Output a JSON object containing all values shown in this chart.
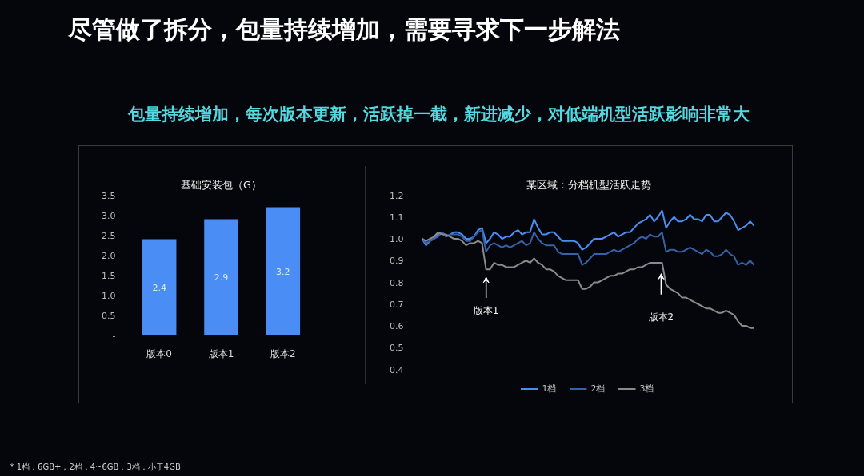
{
  "chart_data": [
    {
      "type": "other",
      "title": "尽管做了拆分，包量持续增加，需要寻求下一步解法",
      "subtitle": "包量持续增加，每次版本更新，活跃掉一截，新进减少，对低端机型活跃影响非常大",
      "annotations": [
        "* 1档：6GB+；2档：4~6GB；3档：小于4GB"
      ]
    },
    {
      "type": "bar",
      "title": "基础安装包（G）",
      "categories": [
        "版本0",
        "版本1",
        "版本2"
      ],
      "values": [
        2.4,
        2.9,
        3.2
      ],
      "color": "#4a8ef5",
      "ylim": [
        0,
        3.5
      ],
      "yticks": [
        {
          "value": 0,
          "label": "-"
        },
        0.5,
        {
          "value": 1,
          "label": "1.0"
        },
        1.5,
        {
          "value": 2,
          "label": "2.0"
        },
        2.5,
        {
          "value": 3,
          "label": "3.0"
        },
        3.5
      ],
      "data_labels": true
    },
    {
      "type": "line",
      "title": "某区域：分档机型活跃走势",
      "categories": [
        null,
        null,
        null,
        null,
        null,
        null,
        null,
        null,
        null,
        null,
        null,
        null,
        null,
        null,
        null,
        null,
        null,
        null,
        null,
        null,
        null,
        null,
        null,
        null,
        null,
        null,
        null,
        null,
        null,
        null,
        null,
        null,
        null,
        null,
        null,
        null,
        null,
        null,
        null,
        null,
        null,
        null,
        null,
        null,
        null,
        null,
        null,
        null,
        null,
        null,
        null,
        null,
        null,
        null,
        null,
        null,
        null,
        null,
        null,
        null,
        null,
        null,
        null,
        null,
        null,
        null,
        null,
        null,
        null,
        null,
        null,
        null,
        null,
        null,
        null,
        null,
        null,
        null,
        null,
        null,
        null,
        null,
        null,
        null
      ],
      "series": [
        {
          "name": "1档",
          "color": "#4a8ff0",
          "values": [
            1.0,
            0.97,
            0.99,
            1.0,
            1.02,
            1.03,
            1.01,
            1.02,
            1.03,
            1.03,
            1.02,
            1.0,
            1.0,
            1.01,
            1.04,
            1.05,
            0.98,
            1.0,
            1.03,
            1.02,
            1.0,
            1.01,
            1.01,
            1.03,
            1.04,
            1.02,
            1.03,
            1.03,
            1.09,
            1.05,
            1.02,
            1.02,
            1.03,
            1.03,
            1.01,
            0.99,
            0.99,
            0.99,
            0.99,
            0.98,
            0.95,
            0.96,
            0.98,
            1.0,
            1.0,
            1.0,
            1.01,
            1.02,
            1.03,
            1.01,
            1.02,
            1.03,
            1.03,
            1.05,
            1.07,
            1.08,
            1.09,
            1.11,
            1.08,
            1.1,
            1.13,
            1.05,
            1.08,
            1.1,
            1.08,
            1.08,
            1.09,
            1.11,
            1.09,
            1.09,
            1.08,
            1.11,
            1.11,
            1.08,
            1.08,
            1.1,
            1.12,
            1.11,
            1.08,
            1.04,
            1.05,
            1.06,
            1.08,
            1.06
          ]
        },
        {
          "name": "2档",
          "color": "#3461a8",
          "values": [
            1.0,
            0.98,
            0.99,
            1.0,
            1.01,
            1.03,
            1.01,
            1.02,
            1.02,
            1.02,
            1.01,
            0.99,
            0.99,
            1.01,
            1.03,
            1.04,
            0.94,
            0.97,
            0.98,
            0.97,
            0.96,
            0.97,
            0.96,
            0.97,
            0.98,
            0.99,
            0.97,
            0.98,
            1.03,
            1.0,
            0.98,
            0.97,
            0.97,
            0.97,
            0.94,
            0.93,
            0.93,
            0.93,
            0.93,
            0.93,
            0.88,
            0.89,
            0.91,
            0.93,
            0.93,
            0.93,
            0.93,
            0.94,
            0.95,
            0.94,
            0.95,
            0.96,
            0.97,
            0.98,
            1.0,
            1.01,
            1.0,
            1.02,
            1.01,
            1.01,
            1.03,
            0.94,
            0.95,
            0.95,
            0.94,
            0.94,
            0.95,
            0.96,
            0.95,
            0.94,
            0.93,
            0.95,
            0.94,
            0.92,
            0.92,
            0.93,
            0.95,
            0.93,
            0.92,
            0.88,
            0.89,
            0.88,
            0.9,
            0.88
          ]
        },
        {
          "name": "3档",
          "color": "#8a8a8a",
          "values": [
            1.0,
            0.99,
            1.0,
            1.01,
            1.03,
            1.02,
            1.02,
            1.01,
            1.0,
            1.0,
            0.99,
            0.97,
            0.98,
            0.98,
            0.99,
            0.98,
            0.86,
            0.86,
            0.89,
            0.88,
            0.88,
            0.87,
            0.87,
            0.87,
            0.88,
            0.89,
            0.9,
            0.89,
            0.91,
            0.89,
            0.88,
            0.86,
            0.86,
            0.85,
            0.83,
            0.82,
            0.81,
            0.81,
            0.81,
            0.81,
            0.77,
            0.77,
            0.78,
            0.8,
            0.8,
            0.81,
            0.82,
            0.83,
            0.83,
            0.84,
            0.84,
            0.85,
            0.86,
            0.86,
            0.87,
            0.87,
            0.88,
            0.89,
            0.89,
            0.89,
            0.89,
            0.79,
            0.77,
            0.76,
            0.75,
            0.73,
            0.73,
            0.72,
            0.71,
            0.7,
            0.69,
            0.68,
            0.68,
            0.67,
            0.66,
            0.66,
            0.67,
            0.66,
            0.65,
            0.62,
            0.6,
            0.6,
            0.59,
            0.59
          ]
        }
      ],
      "ylim": [
        0.4,
        1.2
      ],
      "yticks": [
        0.4,
        0.5,
        0.6,
        0.7,
        0.8,
        0.9,
        {
          "value": 1,
          "label": "1.0"
        },
        1.1,
        1.2
      ],
      "legend": "bottom",
      "annotations": [
        "版本1",
        "版本2"
      ]
    }
  ]
}
